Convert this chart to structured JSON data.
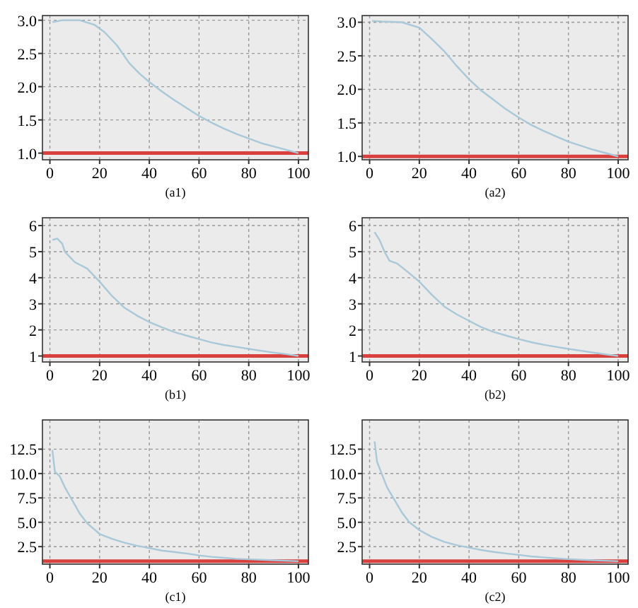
{
  "chart_data": [
    {
      "type": "line",
      "title": "(a1)",
      "xlim": [
        -3,
        104
      ],
      "ylim": [
        0.9,
        3.07
      ],
      "xticks": [
        0,
        20,
        40,
        60,
        80,
        100
      ],
      "yticks": [
        {
          "value": 1,
          "label": "1.0"
        },
        {
          "value": 1.5,
          "label": "1.5"
        },
        {
          "value": 2,
          "label": "2.0"
        },
        {
          "value": 2.5,
          "label": "2.5"
        },
        {
          "value": 3,
          "label": "3.0"
        }
      ],
      "grid": true,
      "line_style": "solid",
      "ref_lines": [
        {
          "axis": "y",
          "value": 1,
          "color": "#d9413f"
        }
      ],
      "series": [
        {
          "color": "#a9c8d8",
          "x": [
            1,
            5,
            12,
            18,
            22,
            27,
            32,
            36,
            40,
            45,
            50,
            55,
            60,
            65,
            70,
            75,
            80,
            85,
            90,
            95,
            100
          ],
          "values": [
            2.97,
            3.0,
            3.0,
            2.93,
            2.82,
            2.62,
            2.35,
            2.2,
            2.07,
            1.93,
            1.8,
            1.68,
            1.56,
            1.46,
            1.37,
            1.29,
            1.22,
            1.15,
            1.1,
            1.05,
            1.0
          ]
        }
      ]
    },
    {
      "type": "line",
      "title": "(a2)",
      "xlim": [
        -3,
        104
      ],
      "ylim": [
        0.95,
        3.1
      ],
      "xticks": [
        0,
        20,
        40,
        60,
        80,
        100
      ],
      "yticks": [
        {
          "value": 1,
          "label": "1.0"
        },
        {
          "value": 1.5,
          "label": "1.5"
        },
        {
          "value": 2,
          "label": "2.0"
        },
        {
          "value": 2.5,
          "label": "2.5"
        },
        {
          "value": 3,
          "label": "3.0"
        }
      ],
      "grid": true,
      "line_style": "solid",
      "ref_lines": [
        {
          "axis": "y",
          "value": 1,
          "color": "#d9413f"
        }
      ],
      "series": [
        {
          "color": "#a9c8d8",
          "x": [
            1,
            5,
            13,
            20,
            25,
            30,
            35,
            40,
            45,
            50,
            55,
            60,
            65,
            70,
            75,
            80,
            85,
            90,
            95,
            100
          ],
          "values": [
            3.02,
            3.01,
            3.0,
            2.92,
            2.75,
            2.57,
            2.35,
            2.15,
            1.98,
            1.84,
            1.7,
            1.58,
            1.47,
            1.38,
            1.3,
            1.22,
            1.16,
            1.1,
            1.05,
            1.0
          ]
        }
      ]
    },
    {
      "type": "line",
      "title": "(b1)",
      "xlim": [
        -3,
        104
      ],
      "ylim": [
        0.77,
        6.3
      ],
      "xticks": [
        0,
        20,
        40,
        60,
        80,
        100
      ],
      "yticks": [
        1,
        2,
        3,
        4,
        5,
        6
      ],
      "grid": true,
      "line_style": "solid",
      "ref_lines": [
        {
          "axis": "y",
          "value": 1,
          "color": "#d9413f"
        }
      ],
      "series": [
        {
          "color": "#a9c8d8",
          "x": [
            1,
            3,
            5,
            6,
            8,
            10,
            15,
            20,
            25,
            30,
            35,
            40,
            45,
            50,
            55,
            60,
            65,
            70,
            75,
            80,
            85,
            90,
            95,
            100
          ],
          "values": [
            5.45,
            5.5,
            5.3,
            5.0,
            4.8,
            4.6,
            4.35,
            3.85,
            3.3,
            2.85,
            2.55,
            2.3,
            2.1,
            1.92,
            1.78,
            1.65,
            1.52,
            1.42,
            1.35,
            1.27,
            1.2,
            1.13,
            1.07,
            1.0
          ]
        }
      ]
    },
    {
      "type": "line",
      "title": "(b2)",
      "xlim": [
        -3,
        104
      ],
      "ylim": [
        0.77,
        6.3
      ],
      "xticks": [
        0,
        20,
        40,
        60,
        80,
        100
      ],
      "yticks": [
        1,
        2,
        3,
        4,
        5,
        6
      ],
      "grid": true,
      "line_style": "solid",
      "ref_lines": [
        {
          "axis": "y",
          "value": 1,
          "color": "#d9413f"
        }
      ],
      "series": [
        {
          "color": "#a9c8d8",
          "x": [
            2,
            4,
            6,
            8,
            11,
            15,
            20,
            25,
            30,
            35,
            40,
            45,
            50,
            55,
            60,
            65,
            70,
            75,
            80,
            85,
            90,
            95,
            100
          ],
          "values": [
            5.75,
            5.45,
            5.0,
            4.65,
            4.55,
            4.25,
            3.85,
            3.35,
            2.9,
            2.6,
            2.35,
            2.1,
            1.92,
            1.78,
            1.65,
            1.53,
            1.43,
            1.35,
            1.27,
            1.2,
            1.13,
            1.06,
            1.0
          ]
        }
      ]
    },
    {
      "type": "line",
      "title": "(c1)",
      "xlim": [
        -3,
        104
      ],
      "ylim": [
        0.7,
        15.5
      ],
      "xticks": [
        0,
        20,
        40,
        60,
        80,
        100
      ],
      "yticks": [
        {
          "value": 2.5,
          "label": "2.5"
        },
        {
          "value": 5,
          "label": "5.0"
        },
        {
          "value": 7.5,
          "label": "7.5"
        },
        {
          "value": 10,
          "label": "10.0"
        },
        {
          "value": 12.5,
          "label": "12.5"
        }
      ],
      "grid": true,
      "line_style": "solid",
      "ref_lines": [
        {
          "axis": "y",
          "value": 1,
          "color": "#d9413f"
        }
      ],
      "series": [
        {
          "color": "#a9c8d8",
          "x": [
            1,
            2,
            4,
            6,
            8,
            10,
            12,
            15,
            20,
            25,
            30,
            35,
            40,
            45,
            50,
            55,
            60,
            65,
            70,
            75,
            80,
            85,
            90,
            100
          ],
          "values": [
            12.4,
            10.2,
            9.7,
            8.6,
            7.7,
            6.8,
            5.9,
            4.9,
            3.8,
            3.3,
            2.9,
            2.6,
            2.35,
            2.1,
            1.95,
            1.8,
            1.6,
            1.45,
            1.35,
            1.25,
            1.2,
            1.15,
            1.1,
            1.0
          ]
        }
      ]
    },
    {
      "type": "line",
      "title": "(c2)",
      "xlim": [
        -3,
        104
      ],
      "ylim": [
        0.7,
        15.5
      ],
      "xticks": [
        0,
        20,
        40,
        60,
        80,
        100
      ],
      "yticks": [
        {
          "value": 2.5,
          "label": "2.5"
        },
        {
          "value": 5,
          "label": "5.0"
        },
        {
          "value": 7.5,
          "label": "7.5"
        },
        {
          "value": 10,
          "label": "10.0"
        },
        {
          "value": 12.5,
          "label": "12.5"
        }
      ],
      "grid": true,
      "line_style": "solid",
      "ref_lines": [
        {
          "axis": "y",
          "value": 1,
          "color": "#d9413f"
        }
      ],
      "series": [
        {
          "color": "#a9c8d8",
          "x": [
            2,
            3,
            5,
            7,
            10,
            13,
            16,
            20,
            25,
            30,
            35,
            40,
            45,
            50,
            55,
            60,
            65,
            70,
            75,
            80,
            85,
            90,
            100
          ],
          "values": [
            13.3,
            11.2,
            9.9,
            8.6,
            7.3,
            6.0,
            5.0,
            4.2,
            3.5,
            3.0,
            2.65,
            2.4,
            2.15,
            1.95,
            1.8,
            1.65,
            1.5,
            1.4,
            1.3,
            1.22,
            1.15,
            1.1,
            1.0
          ]
        }
      ]
    }
  ]
}
